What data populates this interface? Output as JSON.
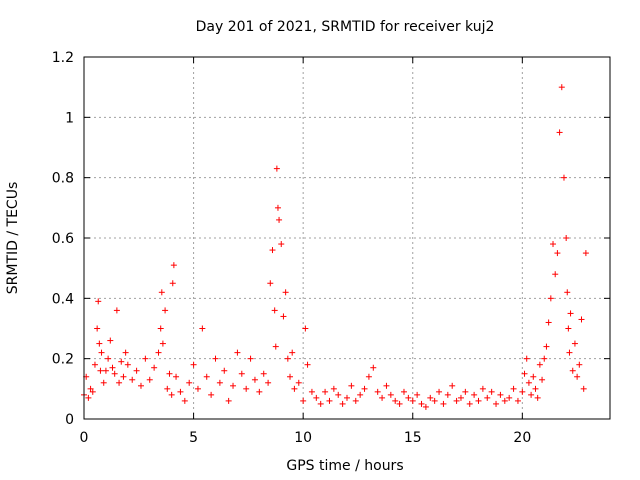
{
  "chart_data": {
    "type": "scatter",
    "title": "Day 201 of 2021, SRMTID for receiver kuj2",
    "xlabel": "GPS time / hours",
    "ylabel": "SRMTID / TECUs",
    "xlim": [
      0,
      24
    ],
    "ylim": [
      0,
      1.2
    ],
    "xticks": [
      0,
      5,
      10,
      15,
      20
    ],
    "xtick_labels": [
      "0",
      "5",
      "10",
      "15",
      "20"
    ],
    "yticks": [
      0,
      0.2,
      0.4,
      0.6,
      0.8,
      1.0,
      1.2
    ],
    "ytick_labels": [
      "0",
      "0.2",
      "0.4",
      "0.6",
      "0.8",
      "1",
      "1.2"
    ],
    "grid": true,
    "marker": "+",
    "color": "#ff0000",
    "series": [
      {
        "name": "SRMTID",
        "x": [
          0.0,
          0.1,
          0.2,
          0.3,
          0.4,
          0.5,
          0.6,
          0.65,
          0.7,
          0.75,
          0.8,
          0.9,
          1.0,
          1.1,
          1.2,
          1.3,
          1.4,
          1.5,
          1.6,
          1.7,
          1.8,
          1.9,
          2.0,
          2.2,
          2.4,
          2.6,
          2.8,
          3.0,
          3.2,
          3.4,
          3.5,
          3.55,
          3.6,
          3.7,
          3.8,
          3.9,
          4.0,
          4.05,
          4.1,
          4.2,
          4.4,
          4.6,
          4.8,
          5.0,
          5.2,
          5.4,
          5.6,
          5.8,
          6.0,
          6.2,
          6.4,
          6.6,
          6.8,
          7.0,
          7.2,
          7.4,
          7.6,
          7.8,
          8.0,
          8.2,
          8.4,
          8.5,
          8.6,
          8.7,
          8.75,
          8.8,
          8.85,
          8.9,
          9.0,
          9.1,
          9.2,
          9.3,
          9.4,
          9.5,
          9.6,
          9.8,
          10.0,
          10.1,
          10.2,
          10.4,
          10.6,
          10.8,
          11.0,
          11.2,
          11.4,
          11.6,
          11.8,
          12.0,
          12.2,
          12.4,
          12.6,
          12.8,
          13.0,
          13.2,
          13.4,
          13.6,
          13.8,
          14.0,
          14.2,
          14.4,
          14.6,
          14.8,
          15.0,
          15.2,
          15.4,
          15.6,
          15.8,
          16.0,
          16.2,
          16.4,
          16.6,
          16.8,
          17.0,
          17.2,
          17.4,
          17.6,
          17.8,
          18.0,
          18.2,
          18.4,
          18.6,
          18.8,
          19.0,
          19.2,
          19.4,
          19.6,
          19.8,
          20.0,
          20.1,
          20.2,
          20.3,
          20.4,
          20.5,
          20.6,
          20.7,
          20.8,
          20.9,
          21.0,
          21.1,
          21.2,
          21.3,
          21.4,
          21.5,
          21.6,
          21.7,
          21.8,
          21.9,
          22.0,
          22.05,
          22.1,
          22.15,
          22.2,
          22.3,
          22.4,
          22.5,
          22.6,
          22.7,
          22.8,
          22.9
        ],
        "values": [
          0.08,
          0.14,
          0.07,
          0.1,
          0.09,
          0.18,
          0.3,
          0.39,
          0.25,
          0.16,
          0.22,
          0.12,
          0.16,
          0.2,
          0.26,
          0.17,
          0.15,
          0.36,
          0.12,
          0.19,
          0.14,
          0.22,
          0.18,
          0.13,
          0.16,
          0.11,
          0.2,
          0.13,
          0.17,
          0.22,
          0.3,
          0.42,
          0.25,
          0.36,
          0.1,
          0.15,
          0.08,
          0.45,
          0.51,
          0.14,
          0.09,
          0.06,
          0.12,
          0.18,
          0.1,
          0.3,
          0.14,
          0.08,
          0.2,
          0.12,
          0.16,
          0.06,
          0.11,
          0.22,
          0.15,
          0.1,
          0.2,
          0.13,
          0.09,
          0.15,
          0.12,
          0.45,
          0.56,
          0.36,
          0.24,
          0.83,
          0.7,
          0.66,
          0.58,
          0.34,
          0.42,
          0.2,
          0.14,
          0.22,
          0.1,
          0.12,
          0.06,
          0.3,
          0.18,
          0.09,
          0.07,
          0.05,
          0.09,
          0.06,
          0.1,
          0.08,
          0.05,
          0.07,
          0.11,
          0.06,
          0.08,
          0.1,
          0.14,
          0.17,
          0.09,
          0.07,
          0.11,
          0.08,
          0.06,
          0.05,
          0.09,
          0.07,
          0.06,
          0.08,
          0.05,
          0.04,
          0.07,
          0.06,
          0.09,
          0.05,
          0.08,
          0.11,
          0.06,
          0.07,
          0.09,
          0.05,
          0.08,
          0.06,
          0.1,
          0.07,
          0.09,
          0.05,
          0.08,
          0.06,
          0.07,
          0.1,
          0.06,
          0.09,
          0.15,
          0.2,
          0.12,
          0.08,
          0.14,
          0.1,
          0.07,
          0.18,
          0.13,
          0.2,
          0.24,
          0.32,
          0.4,
          0.58,
          0.48,
          0.55,
          0.95,
          1.1,
          0.8,
          0.6,
          0.42,
          0.3,
          0.22,
          0.35,
          0.16,
          0.25,
          0.14,
          0.18,
          0.33,
          0.1,
          0.55
        ]
      }
    ]
  }
}
